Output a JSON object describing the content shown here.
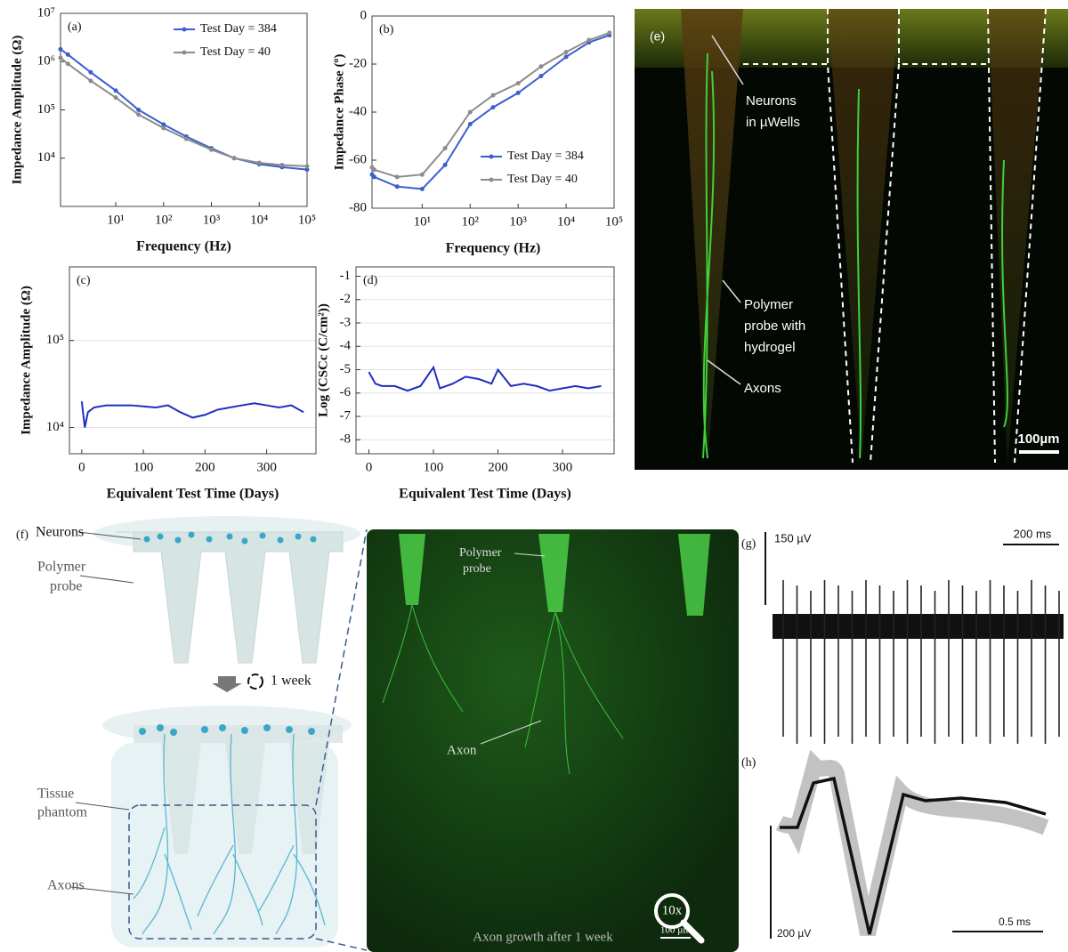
{
  "chart_data": [
    {
      "type": "line",
      "panel_label": "(a)",
      "x_label": "Frequency (Hz)",
      "y_label": "Impedance Amplitude (Ω)",
      "xscale": "log",
      "yscale": "log",
      "xlim": [
        0.7,
        100000
      ],
      "ylim": [
        1000,
        10000000
      ],
      "xticks": [
        {
          "value": 10,
          "label": "10¹"
        },
        {
          "value": 100,
          "label": "10²"
        },
        {
          "value": 1000,
          "label": "10³"
        },
        {
          "value": 10000,
          "label": "10⁴"
        },
        {
          "value": 100000,
          "label": "10⁵"
        }
      ],
      "yticks": [
        {
          "value": 10000,
          "label": "10⁴"
        },
        {
          "value": 100000,
          "label": "10⁵"
        },
        {
          "value": 1000000,
          "label": "10⁶"
        },
        {
          "value": 10000000,
          "label": "10⁷"
        }
      ],
      "legend": "upper right",
      "grid": false,
      "x": [
        0.7,
        1,
        3,
        10,
        30,
        100,
        300,
        1000,
        3000,
        10000,
        30000,
        100000
      ],
      "series": [
        {
          "name": "Test Day = 384",
          "color": "#3a5fcd",
          "values": [
            1800000,
            1400000,
            600000,
            250000,
            100000,
            50000,
            28000,
            16000,
            10000,
            7500,
            6500,
            5800
          ]
        },
        {
          "name": "Test Day = 40",
          "color": "#8c8c8c",
          "values": [
            1200000,
            900000,
            400000,
            180000,
            80000,
            42000,
            25000,
            15000,
            10000,
            8000,
            7200,
            6800
          ]
        }
      ]
    },
    {
      "type": "line",
      "panel_label": "(b)",
      "x_label": "Frequency (Hz)",
      "y_label": "Impedance Phase (º)",
      "xscale": "log",
      "yscale": "linear",
      "xlim": [
        0.9,
        100000
      ],
      "ylim": [
        -80,
        0
      ],
      "xticks": [
        {
          "value": 10,
          "label": "10¹"
        },
        {
          "value": 100,
          "label": "10²"
        },
        {
          "value": 1000,
          "label": "10³"
        },
        {
          "value": 10000,
          "label": "10⁴"
        },
        {
          "value": 100000,
          "label": "10⁵"
        }
      ],
      "yticks": [
        -80,
        -60,
        -40,
        -20,
        0
      ],
      "legend": "lower right",
      "grid": false,
      "x": [
        0.9,
        1,
        3,
        10,
        30,
        100,
        300,
        1000,
        3000,
        10000,
        30000,
        80000
      ],
      "series": [
        {
          "name": "Test Day = 384",
          "color": "#3a5fcd",
          "values": [
            -66,
            -67,
            -71,
            -72,
            -62,
            -45,
            -38,
            -32,
            -25,
            -17,
            -11,
            -8
          ]
        },
        {
          "name": "Test Day = 40",
          "color": "#8c8c8c",
          "values": [
            -63,
            -64,
            -67,
            -66,
            -55,
            -40,
            -33,
            -28,
            -21,
            -15,
            -10,
            -7
          ]
        }
      ]
    },
    {
      "type": "line",
      "panel_label": "(c)",
      "x_label": "Equivalent Test Time (Days)",
      "y_label": "Impedance Amplitude (Ω)",
      "xscale": "linear",
      "yscale": "log",
      "xlim": [
        -20,
        380
      ],
      "ylim": [
        5000,
        700000
      ],
      "xticks": [
        0,
        100,
        200,
        300
      ],
      "yticks": [
        {
          "value": 10000,
          "label": "10⁴"
        },
        {
          "value": 100000,
          "label": "10⁵"
        }
      ],
      "grid": true,
      "x": [
        0,
        5,
        10,
        20,
        40,
        60,
        80,
        100,
        120,
        140,
        160,
        180,
        200,
        220,
        240,
        260,
        280,
        300,
        320,
        340,
        360
      ],
      "series": [
        {
          "color": "#1f2fbf",
          "values": [
            20000,
            10000,
            15000,
            17000,
            18000,
            18000,
            18000,
            17500,
            17000,
            18000,
            15000,
            13000,
            14000,
            16000,
            17000,
            18000,
            19000,
            18000,
            17000,
            18000,
            15000
          ]
        }
      ]
    },
    {
      "type": "line",
      "panel_label": "(d)",
      "x_label": "Equivalent Test Time (Days)",
      "y_label": "Log (CSCc (C/cm²))",
      "xscale": "linear",
      "yscale": "linear",
      "xlim": [
        -20,
        380
      ],
      "ylim": [
        -8.6,
        -0.6
      ],
      "xticks": [
        0,
        100,
        200,
        300
      ],
      "yticks": [
        -8,
        -7,
        -6,
        -5,
        -4,
        -3,
        -2,
        -1
      ],
      "grid": true,
      "x": [
        0,
        10,
        20,
        40,
        60,
        80,
        100,
        110,
        130,
        150,
        170,
        190,
        200,
        220,
        240,
        260,
        280,
        300,
        320,
        340,
        360
      ],
      "series": [
        {
          "color": "#1f2fbf",
          "values": [
            -5.1,
            -5.6,
            -5.7,
            -5.7,
            -5.9,
            -5.7,
            -4.9,
            -5.8,
            -5.6,
            -5.3,
            -5.4,
            -5.6,
            -5.0,
            -5.7,
            -5.6,
            -5.7,
            -5.9,
            -5.8,
            -5.7,
            -5.8,
            -5.7
          ]
        }
      ]
    }
  ],
  "panel_e": {
    "label": "(e)",
    "neurons": [
      "Neurons",
      "in µWells"
    ],
    "probe": [
      "Polymer",
      "probe with",
      "hydrogel"
    ],
    "axons": "Axons",
    "scale": "100µm"
  },
  "panel_f": {
    "label": "(f)",
    "neurons": "Neurons",
    "probe": [
      "Polymer",
      "probe"
    ],
    "duration": "1 week",
    "phantom": [
      "Tissue",
      "phantom"
    ],
    "axons": "Axons",
    "image": {
      "probe": [
        "Polymer",
        "probe"
      ],
      "axon": "Axon",
      "zoom": "10x",
      "caption": "Axon growth after 1 week",
      "scale": "100 µm"
    }
  },
  "panel_g": {
    "label": "(g)",
    "amplitude": "150 µV",
    "time": "200 ms"
  },
  "panel_h": {
    "label": "(h)",
    "amplitude": "200 µV",
    "time": "0.5 ms"
  }
}
